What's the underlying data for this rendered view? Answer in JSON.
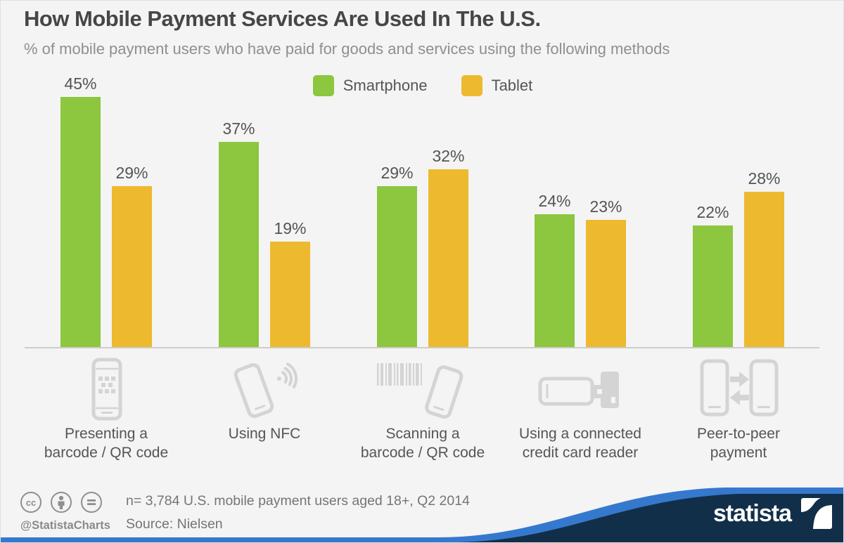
{
  "header": {
    "title": "How Mobile Payment Services Are Used In The U.S.",
    "subtitle": "% of mobile payment users who have paid for goods and services using the following methods"
  },
  "legend": {
    "items": [
      {
        "label": "Smartphone",
        "color": "#8dc63f"
      },
      {
        "label": "Tablet",
        "color": "#edb92e"
      }
    ]
  },
  "chart_data": {
    "type": "bar",
    "title": "How Mobile Payment Services Are Used In The U.S.",
    "subtitle": "% of mobile payment users who have paid for goods and services using the following methods",
    "categories": [
      "Presenting a barcode / QR code",
      "Using NFC",
      "Scanning a barcode / QR code",
      "Using a connected credit card reader",
      "Peer-to-peer payment"
    ],
    "series": [
      {
        "name": "Smartphone",
        "color": "#8dc63f",
        "values": [
          45,
          37,
          29,
          24,
          22
        ]
      },
      {
        "name": "Tablet",
        "color": "#edb92e",
        "values": [
          29,
          19,
          32,
          23,
          28
        ]
      }
    ],
    "unit": "%",
    "value_labels": true,
    "xlabel": "",
    "ylabel": "",
    "ylim": [
      0,
      50
    ],
    "grid": false,
    "legend_position": "top-center"
  },
  "category_meta": [
    {
      "lines": [
        "Presenting a",
        "barcode / QR code"
      ],
      "icon": "phone-qr-icon"
    },
    {
      "lines": [
        "Using NFC"
      ],
      "icon": "phone-nfc-icon"
    },
    {
      "lines": [
        "Scanning a",
        "barcode / QR code"
      ],
      "icon": "barcode-phone-icon"
    },
    {
      "lines": [
        "Using a connected",
        "credit card reader"
      ],
      "icon": "phone-card-reader-icon"
    },
    {
      "lines": [
        "Peer-to-peer",
        "payment"
      ],
      "icon": "p2p-phones-icon"
    }
  ],
  "footer": {
    "license_icons": [
      "cc-icon",
      "attribution-person-icon",
      "equals-icon"
    ],
    "cc_glyph": "cc",
    "handle": "@StatistaCharts",
    "note": "n= 3,784 U.S. mobile payment users aged 18+, Q2 2014",
    "source": "Source: Nielsen",
    "brand": "statista"
  },
  "colors": {
    "background": "#f4f4f4",
    "smartphone_green": "#8dc63f",
    "tablet_yellow": "#edb92e",
    "axis_line": "#cdcdcd",
    "icon_gray": "#d4d4d4",
    "text_dark": "#464646",
    "text_gray": "#8f8f8f",
    "wave_blue": "#3579ce",
    "wave_navy": "#122f49"
  }
}
